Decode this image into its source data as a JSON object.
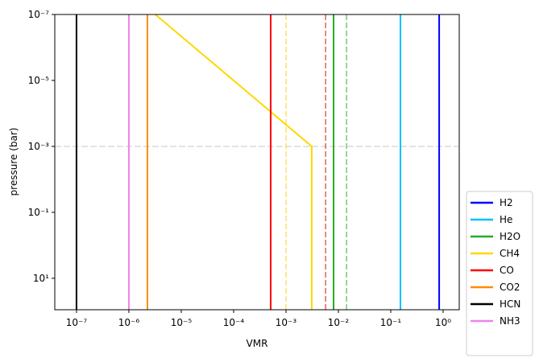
{
  "chart_data": {
    "type": "line",
    "xlabel": "VMR",
    "ylabel": "pressure (bar)",
    "xscale": "log",
    "yscale": "log",
    "yaxis_inverted": true,
    "xlim": [
      3.85e-08,
      2.03
    ],
    "ylim": [
      1e-07,
      90
    ],
    "xticks": [
      {
        "value": 1e-07,
        "label": "10⁻⁷"
      },
      {
        "value": 1e-06,
        "label": "10⁻⁶"
      },
      {
        "value": 1e-05,
        "label": "10⁻⁵"
      },
      {
        "value": 0.0001,
        "label": "10⁻⁴"
      },
      {
        "value": 0.001,
        "label": "10⁻³"
      },
      {
        "value": 0.01,
        "label": "10⁻²"
      },
      {
        "value": 0.1,
        "label": "10⁻¹"
      },
      {
        "value": 1,
        "label": "10⁰"
      }
    ],
    "yticks": [
      {
        "value": 1e-07,
        "label": "10⁻⁷"
      },
      {
        "value": 1e-05,
        "label": "10⁻⁵"
      },
      {
        "value": 0.001,
        "label": "10⁻³"
      },
      {
        "value": 0.1,
        "label": "10⁻¹"
      },
      {
        "value": 10,
        "label": "10¹"
      }
    ],
    "series": [
      {
        "name": "H2",
        "color": "#0000ff",
        "x": [
          0.84,
          0.84
        ],
        "y": [
          1e-07,
          90
        ]
      },
      {
        "name": "He",
        "color": "#00bfff",
        "x": [
          0.153,
          0.153
        ],
        "y": [
          1e-07,
          90
        ]
      },
      {
        "name": "H2O",
        "color": "#22aa22",
        "x": [
          0.0081,
          0.0081
        ],
        "y": [
          1e-07,
          90
        ]
      },
      {
        "name": "CH4",
        "color": "#ffd700",
        "x": [
          3.2e-06,
          0.0031,
          0.0031
        ],
        "y": [
          1e-07,
          0.001,
          90
        ]
      },
      {
        "name": "CO",
        "color": "#ff0000",
        "x": [
          0.00051,
          0.00051
        ],
        "y": [
          1e-07,
          90
        ]
      },
      {
        "name": "CO2",
        "color": "#ff8c00",
        "x": [
          2.26e-06,
          2.26e-06
        ],
        "y": [
          1e-07,
          90
        ]
      },
      {
        "name": "HCN",
        "color": "#000000",
        "x": [
          1e-07,
          1e-07
        ],
        "y": [
          1e-07,
          90
        ]
      },
      {
        "name": "NH3",
        "color": "#ee82ee",
        "x": [
          1e-06,
          1e-06
        ],
        "y": [
          1e-07,
          90
        ]
      }
    ],
    "reference_lines_x": [
      {
        "x": 0.0143,
        "color": "#77c777"
      },
      {
        "x": 0.001,
        "color": "#ffe066"
      },
      {
        "x": 0.0057,
        "color": "#e06060"
      }
    ],
    "reference_lines_y": [
      {
        "y": 0.001,
        "color": "#c8c8c8"
      }
    ]
  }
}
